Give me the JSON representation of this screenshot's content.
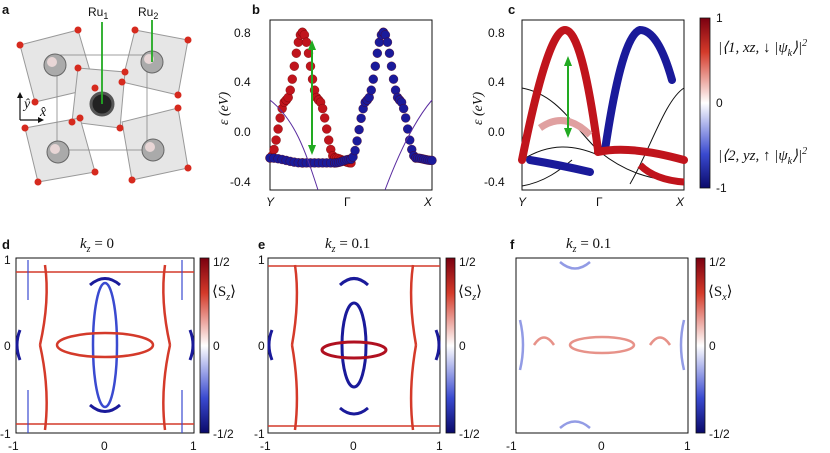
{
  "figure": {
    "panels": {
      "a": {
        "letter": "a",
        "labels": {
          "ru1": "Ru",
          "ru1_sub": "1",
          "ru2": "Ru",
          "ru2_sub": "2",
          "y_axis": "ŷ",
          "x_axis": "x̂"
        }
      },
      "b": {
        "letter": "b"
      },
      "c": {
        "letter": "c"
      },
      "d": {
        "letter": "d",
        "title": "k",
        "title_sub": "z",
        "title_value": " = 0"
      },
      "e": {
        "letter": "e",
        "title": "k",
        "title_sub": "z",
        "title_value": " = 0.1"
      },
      "f": {
        "letter": "f",
        "title": "k",
        "title_sub": "z",
        "title_value": " = 0.1"
      }
    },
    "band_colorbar": {
      "ticks": [
        "1",
        "0",
        "-1"
      ],
      "top_label": "|⟨1, xz, ↓ |ψ",
      "top_label_sub": "k",
      "top_label_tail": "⟩|",
      "top_label_sup": "2",
      "bottom_label": "|⟨2, yz, ↑ |ψ",
      "bottom_label_sub": "k",
      "bottom_label_tail": "⟩|",
      "bottom_label_sup": "2"
    },
    "spin_colorbars": [
      {
        "ticks": [
          "1/2",
          "0",
          "-1/2"
        ],
        "label": "⟨S",
        "label_sub": "z",
        "label_tail": "⟩"
      },
      {
        "ticks": [
          "1/2",
          "0",
          "-1/2"
        ],
        "label": "⟨S",
        "label_sub": "z",
        "label_tail": "⟩"
      },
      {
        "ticks": [
          "1/2",
          "0",
          "-1/2"
        ],
        "label": "⟨S",
        "label_sub": "x",
        "label_tail": "⟩"
      }
    ],
    "colors": {
      "red": "#c0141c",
      "blue": "#1a1a9a",
      "green": "#22aa22",
      "purple": "#5a2ca0",
      "gray_square": "#e6e6e6",
      "atom_red": "#d62a1e"
    }
  },
  "chart_data": [
    {
      "panel": "b",
      "type": "line",
      "ylabel": "ε (eV)",
      "xticks": [
        "Y",
        "Γ",
        "X"
      ],
      "yticks": [
        "0.8",
        "0.4",
        "0.0",
        "-0.4"
      ],
      "ylim": [
        -0.48,
        0.9
      ],
      "series": [
        {
          "color": "red",
          "x": [
            0.0,
            0.1,
            0.2,
            0.3,
            0.4,
            0.5
          ],
          "y": [
            -0.22,
            0.25,
            0.8,
            0.25,
            -0.22,
            -0.26
          ]
        },
        {
          "color": "blue",
          "x": [
            0.0,
            0.2,
            0.4,
            0.5,
            0.6,
            0.7,
            0.8,
            0.9,
            1.0
          ],
          "y": [
            -0.22,
            -0.26,
            -0.26,
            -0.23,
            0.25,
            0.8,
            0.25,
            -0.22,
            -0.24
          ]
        }
      ]
    },
    {
      "panel": "c",
      "type": "line",
      "ylabel": "ε (eV)",
      "xticks": [
        "Y",
        "Γ",
        "X"
      ],
      "yticks": [
        "0.8",
        "0.4",
        "0.0",
        "-0.4"
      ],
      "ylim": [
        -0.48,
        0.9
      ]
    },
    {
      "panel": "d",
      "type": "heatmap",
      "xticks": [
        "-1",
        "0",
        "1"
      ],
      "yticks": [
        "1",
        "0",
        "-1"
      ],
      "xlim": [
        -1,
        1
      ],
      "ylim": [
        -1,
        1
      ]
    },
    {
      "panel": "e",
      "type": "heatmap",
      "xticks": [
        "-1",
        "0",
        "1"
      ],
      "yticks": [
        "1",
        "0",
        "-1"
      ],
      "xlim": [
        -1,
        1
      ],
      "ylim": [
        -1,
        1
      ]
    },
    {
      "panel": "f",
      "type": "heatmap",
      "xticks": [
        "-1",
        "0",
        "1"
      ],
      "xlim": [
        -1,
        1
      ],
      "ylim": [
        -1,
        1
      ]
    }
  ]
}
